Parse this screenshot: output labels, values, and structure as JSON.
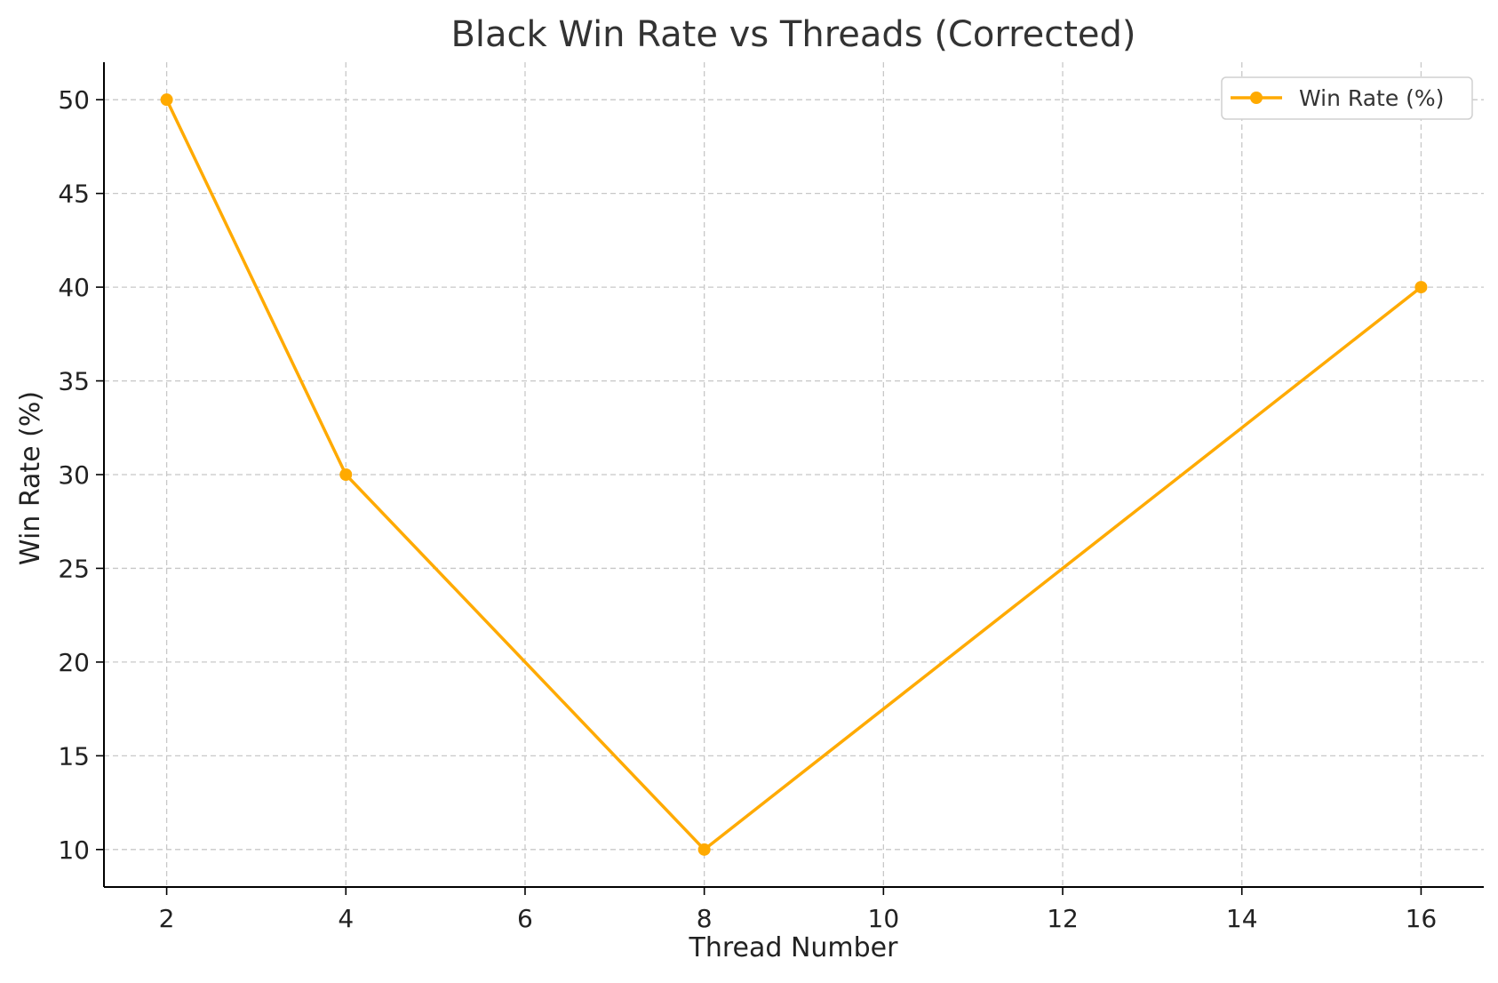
{
  "chart_data": {
    "type": "line",
    "title": "Black Win Rate vs Threads (Corrected)",
    "xlabel": "Thread Number",
    "ylabel": "Win Rate (%)",
    "x": [
      2,
      4,
      8,
      16
    ],
    "series": [
      {
        "name": "Win Rate (%)",
        "values": [
          50,
          30,
          10,
          40
        ],
        "color": "#FFAA00",
        "marker": "circle"
      }
    ],
    "xlim": [
      1.3,
      16.7
    ],
    "ylim": [
      8,
      52
    ],
    "xticks": [
      2,
      4,
      6,
      8,
      10,
      12,
      14,
      16
    ],
    "yticks": [
      10,
      15,
      20,
      25,
      30,
      35,
      40,
      45,
      50
    ],
    "grid": true,
    "grid_style": "dashed",
    "legend_position": "top-right"
  }
}
